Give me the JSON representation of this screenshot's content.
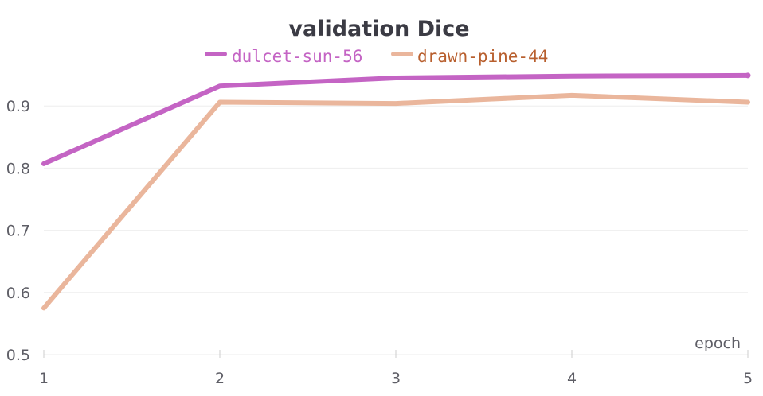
{
  "chart_data": {
    "type": "line",
    "title": "validation Dice",
    "xlabel": "epoch",
    "ylabel": "",
    "x": [
      1,
      2,
      3,
      4,
      5
    ],
    "xticks": [
      "1",
      "2",
      "3",
      "4",
      "5"
    ],
    "yticks": [
      "0.5",
      "0.6",
      "0.7",
      "0.8",
      "0.9"
    ],
    "xlim": [
      1,
      5
    ],
    "ylim": [
      0.5,
      1.0
    ],
    "grid": "horizontal",
    "legend_position": "top-center",
    "series": [
      {
        "name": "dulcet-sun-56",
        "color": "#c464c4",
        "values": [
          0.807,
          0.932,
          0.945,
          0.948,
          0.949
        ]
      },
      {
        "name": "drawn-pine-44",
        "color": "#eab69c",
        "label_color": "#b85f2e",
        "values": [
          0.575,
          0.906,
          0.904,
          0.917,
          0.906
        ]
      }
    ]
  }
}
